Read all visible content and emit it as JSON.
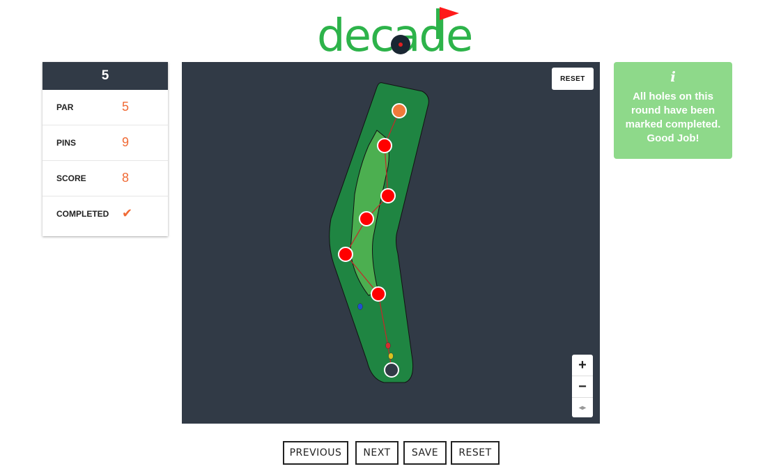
{
  "logo": {
    "text": "decade"
  },
  "stats": {
    "hole": "5",
    "rows": [
      {
        "label": "PAR",
        "value": "5"
      },
      {
        "label": "PINS",
        "value": "9"
      },
      {
        "label": "SCORE",
        "value": "8"
      },
      {
        "label": "COMPLETED",
        "value": "✔"
      }
    ]
  },
  "map": {
    "reset_label": "RESET",
    "zoom_in": "+",
    "zoom_out": "−",
    "compass": "◂▸"
  },
  "info": {
    "icon": "i",
    "message": "All holes on this round have been marked completed. Good Job!"
  },
  "nav": {
    "previous": "PREVIOUS",
    "next": "NEXT",
    "save": "SAVE",
    "reset": "RESET"
  },
  "colors": {
    "accent": "#f06a35",
    "header_bg": "#313a46",
    "map_bg": "#313a46",
    "fairway": "#1f8542",
    "rough": "#4caf50",
    "pin": "#ff0000",
    "info_bg": "#8ed98a",
    "logo_green": "#2db34a"
  }
}
